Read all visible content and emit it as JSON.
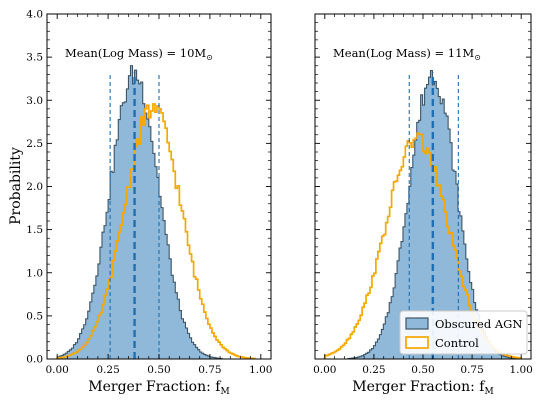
{
  "figure": {
    "ylabel": "Probability",
    "xlabel": "Merger Fraction: f",
    "xlabel_sub": "M"
  },
  "legend": {
    "placement": "lower-right of second panel",
    "entries": [
      {
        "label": "Obscured AGN",
        "fill": "#8fb8d9",
        "edge": "#3d5566"
      },
      {
        "label": "Control",
        "fill": "#ffffff",
        "edge": "#f5a800"
      }
    ]
  },
  "chart_data": [
    {
      "type": "histogram",
      "annotation_prefix": "Mean(Log Mass) = 10M",
      "annotation_sub": "⊙",
      "xlim": [
        -0.05,
        1.05
      ],
      "ylim": [
        0,
        4.0
      ],
      "xticks": [
        "0.00",
        "0.25",
        "0.50",
        "0.75",
        "1.00"
      ],
      "yticks": [
        "0.0",
        "0.5",
        "1.0",
        "1.5",
        "2.0",
        "2.5",
        "3.0",
        "3.5",
        "4.0"
      ],
      "y_ticks_labeled": true,
      "series": [
        {
          "name": "Obscured AGN",
          "style": "filled",
          "mean": 0.38,
          "sd": 0.12,
          "peak": 3.3
        },
        {
          "name": "Control",
          "style": "step",
          "mean": 0.47,
          "sd": 0.14,
          "peak": 2.9
        }
      ],
      "vlines": [
        {
          "x": 0.26,
          "style": "thin-dashed"
        },
        {
          "x": 0.38,
          "style": "thick-dashed"
        },
        {
          "x": 0.5,
          "style": "thin-dashed"
        }
      ]
    },
    {
      "type": "histogram",
      "annotation_prefix": "Mean(Log Mass) = 11M",
      "annotation_sub": "⊙",
      "xlim": [
        -0.05,
        1.05
      ],
      "ylim": [
        0,
        4.0
      ],
      "xticks": [
        "0.00",
        "0.25",
        "0.50",
        "0.75",
        "1.00"
      ],
      "yticks": [
        "0.0",
        "0.5",
        "1.0",
        "1.5",
        "2.0",
        "2.5",
        "3.0",
        "3.5",
        "4.0"
      ],
      "y_ticks_labeled": false,
      "series": [
        {
          "name": "Obscured AGN",
          "style": "filled",
          "mean": 0.55,
          "sd": 0.12,
          "peak": 3.3
        },
        {
          "name": "Control",
          "style": "step",
          "mean": 0.47,
          "sd": 0.16,
          "peak": 2.55
        }
      ],
      "vlines": [
        {
          "x": 0.43,
          "style": "thin-dashed"
        },
        {
          "x": 0.55,
          "style": "thick-dashed"
        },
        {
          "x": 0.68,
          "style": "thin-dashed"
        }
      ]
    }
  ]
}
